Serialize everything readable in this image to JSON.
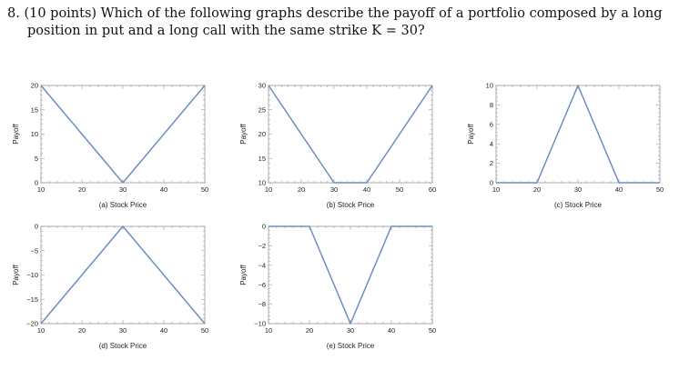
{
  "question": {
    "line1": "8.  (10 points)  Which of the following graphs describe the payoff of a portfolio composed by a long",
    "line2": "position in put and a long call with the same strike K = 30?"
  },
  "colors": {
    "line": "#6b8ec0",
    "frame": "#9a9a9a",
    "text": "#222222"
  },
  "chart_data": [
    {
      "type": "line",
      "xlabel": "(a) Stock Price",
      "ylabel": "Payoff",
      "xlim": [
        10,
        50
      ],
      "ylim": [
        0,
        20
      ],
      "xticks": [
        10,
        20,
        30,
        40,
        50
      ],
      "yticks": [
        0,
        5,
        10,
        15,
        20
      ],
      "x": [
        10,
        30,
        50
      ],
      "y": [
        20,
        0,
        20
      ]
    },
    {
      "type": "line",
      "xlabel": "(b) Stock Price",
      "ylabel": "Payoff",
      "xlim": [
        10,
        60
      ],
      "ylim": [
        10,
        30
      ],
      "xticks": [
        10,
        20,
        30,
        40,
        50,
        60
      ],
      "yticks": [
        10,
        15,
        20,
        25,
        30
      ],
      "x": [
        10,
        30,
        40,
        60
      ],
      "y": [
        30,
        10,
        10,
        30
      ]
    },
    {
      "type": "line",
      "xlabel": "(c) Stock Price",
      "ylabel": "Payoff",
      "xlim": [
        10,
        50
      ],
      "ylim": [
        0,
        10
      ],
      "xticks": [
        10,
        20,
        30,
        40,
        50
      ],
      "yticks": [
        0,
        2,
        4,
        6,
        8,
        10
      ],
      "x": [
        10,
        20,
        30,
        40,
        50
      ],
      "y": [
        0,
        0,
        10,
        0,
        0
      ]
    },
    {
      "type": "line",
      "xlabel": "(d) Stock Price",
      "ylabel": "Payoff",
      "xlim": [
        10,
        50
      ],
      "ylim": [
        -20,
        0
      ],
      "xticks": [
        10,
        20,
        30,
        40,
        50
      ],
      "yticks": [
        -20,
        -15,
        -10,
        -5,
        0
      ],
      "x": [
        10,
        30,
        50
      ],
      "y": [
        -20,
        0,
        -20
      ]
    },
    {
      "type": "line",
      "xlabel": "(e) Stock Price",
      "ylabel": "Payoff",
      "xlim": [
        10,
        50
      ],
      "ylim": [
        -10,
        0
      ],
      "xticks": [
        10,
        20,
        30,
        40,
        50
      ],
      "yticks": [
        -10,
        -8,
        -6,
        -4,
        -2,
        0
      ],
      "x": [
        10,
        20,
        30,
        40,
        50
      ],
      "y": [
        0,
        0,
        -10,
        0,
        0
      ]
    }
  ]
}
